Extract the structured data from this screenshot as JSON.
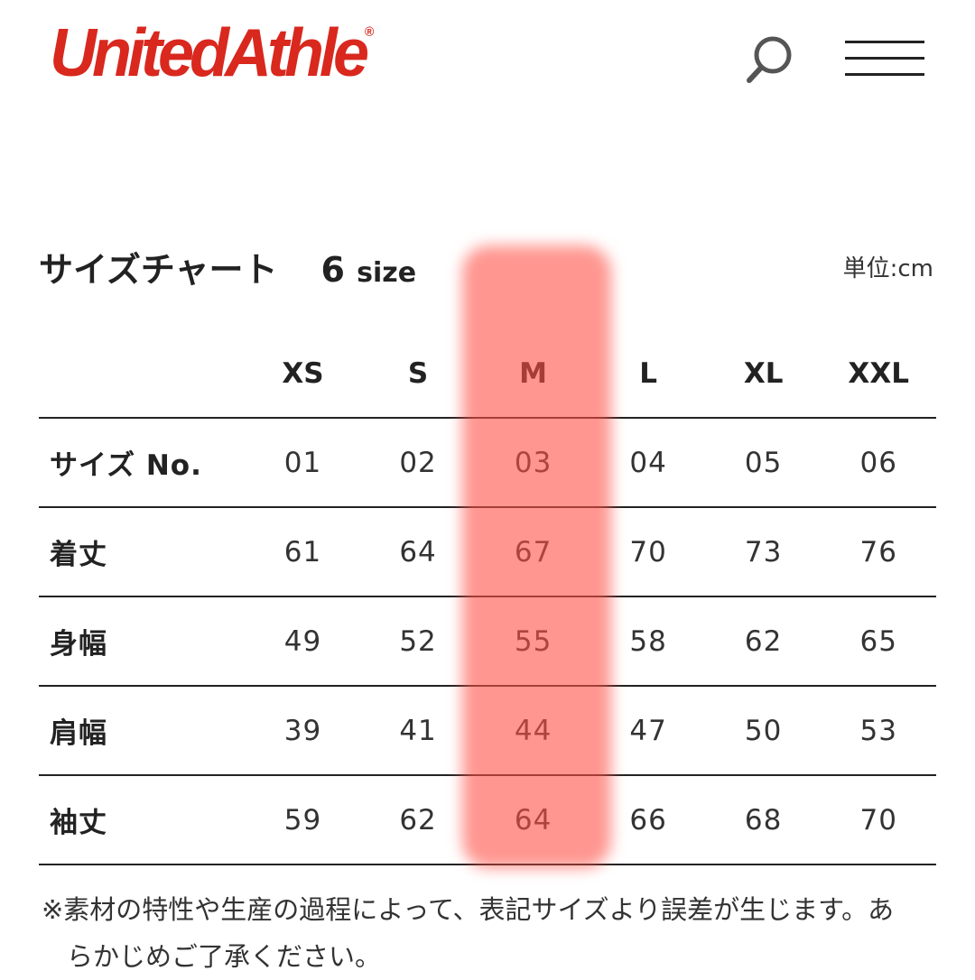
{
  "header": {
    "logo": "UnitedAthle",
    "search_icon": "search-icon",
    "menu_icon": "hamburger-menu-icon"
  },
  "chart": {
    "title": "サイズチャート",
    "count": "6",
    "count_unit": "size",
    "unit": "単位:cm",
    "columns": [
      "XS",
      "S",
      "M",
      "L",
      "XL",
      "XXL"
    ],
    "rows": [
      {
        "label": "サイズ No.",
        "values": [
          "01",
          "02",
          "03",
          "04",
          "05",
          "06"
        ]
      },
      {
        "label": "着丈",
        "values": [
          "61",
          "64",
          "67",
          "70",
          "73",
          "76"
        ]
      },
      {
        "label": "身幅",
        "values": [
          "49",
          "52",
          "55",
          "58",
          "62",
          "65"
        ]
      },
      {
        "label": "肩幅",
        "values": [
          "39",
          "41",
          "44",
          "47",
          "50",
          "53"
        ]
      },
      {
        "label": "袖丈",
        "values": [
          "59",
          "62",
          "64",
          "66",
          "68",
          "70"
        ]
      }
    ],
    "highlighted_column": "M",
    "highlight_color": "#ff5046"
  },
  "note": {
    "line1": "※素材の特性や生産の過程によって、表記サイズより誤差が生じます。あ",
    "line2": "らかじめご了承ください。"
  },
  "colors": {
    "brand": "#d9281e"
  }
}
